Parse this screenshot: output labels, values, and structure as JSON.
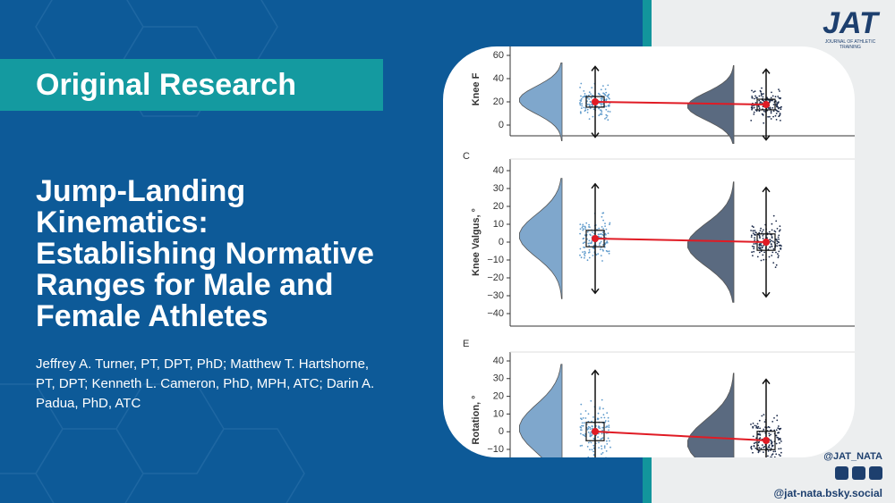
{
  "header": {
    "label": "Original Research",
    "title_lines": [
      "Jump-Landing",
      "Kinematics:",
      "Establishing Normative",
      "Ranges for Male and",
      "Female Athletes"
    ],
    "author_lines": [
      "Jeffrey A. Turner, PT, DPT, PhD; Matthew T. Hartshorne,",
      "PT, DPT; Kenneth L. Cameron, PhD, MPH, ATC; Darin A.",
      "Padua, PhD, ATC"
    ]
  },
  "logo": {
    "mark": "JAT",
    "subtitle": "JOURNAL OF ATHLETIC TRAINING"
  },
  "social": {
    "handle": "@JAT_NATA",
    "bluesky": "@jat-nata.bsky.social"
  },
  "figure": {
    "panels": [
      {
        "axis_label": "Knee F",
        "ticks": [
          "60",
          "40",
          "20",
          "0"
        ]
      },
      {
        "letter": "C",
        "axis_label": "Knee Valgus, °",
        "ticks": [
          "40",
          "30",
          "20",
          "10",
          "0",
          "−10",
          "−20",
          "−30",
          "−40"
        ]
      },
      {
        "letter": "E",
        "axis_label": "Rotation, °",
        "ticks": [
          "40",
          "30",
          "20",
          "10",
          "0",
          "−10"
        ]
      }
    ]
  }
}
